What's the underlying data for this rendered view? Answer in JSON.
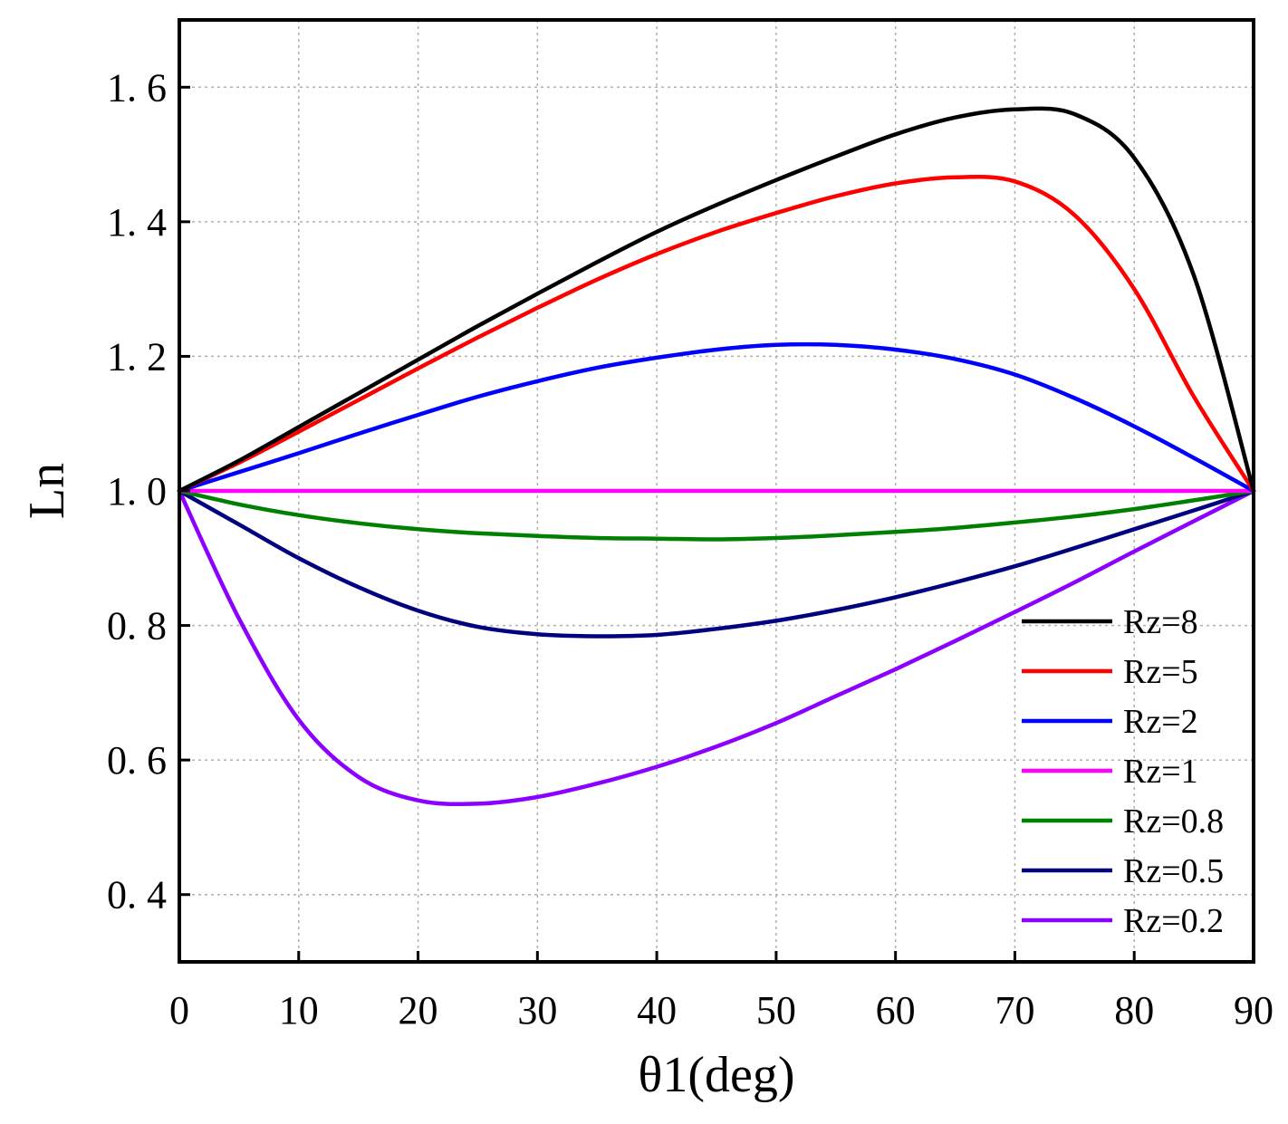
{
  "chart_data": {
    "type": "line",
    "title": "",
    "xlabel": "θ1(deg)",
    "ylabel": "Ln",
    "xlim": [
      0,
      90
    ],
    "ylim": [
      0.3,
      1.7
    ],
    "xticks": [
      0,
      10,
      20,
      30,
      40,
      50,
      60,
      70,
      80,
      90
    ],
    "yticks": [
      0.4,
      0.6,
      0.8,
      1.0,
      1.2,
      1.4,
      1.6
    ],
    "xtick_labels": [
      "0",
      "10",
      "20",
      "30",
      "40",
      "50",
      "60",
      "70",
      "80",
      "90"
    ],
    "ytick_labels": [
      "0. 4",
      "0. 6",
      "0. 8",
      "1. 0",
      "1. 2",
      "1. 4",
      "1. 6"
    ],
    "grid": true,
    "legend_position": "bottom-right",
    "x": [
      0,
      5,
      10,
      15,
      20,
      25,
      30,
      35,
      40,
      45,
      50,
      55,
      60,
      65,
      70,
      75,
      80,
      85,
      90
    ],
    "series": [
      {
        "name": "Rz=8",
        "color": "#000000",
        "values": [
          1.0,
          1.045,
          1.095,
          1.145,
          1.195,
          1.245,
          1.293,
          1.34,
          1.385,
          1.425,
          1.462,
          1.497,
          1.53,
          1.555,
          1.567,
          1.56,
          1.495,
          1.32,
          1.0
        ]
      },
      {
        "name": "Rz=5",
        "color": "#ff0000",
        "values": [
          1.0,
          1.042,
          1.088,
          1.135,
          1.182,
          1.228,
          1.272,
          1.314,
          1.352,
          1.385,
          1.413,
          1.438,
          1.457,
          1.466,
          1.46,
          1.41,
          1.3,
          1.14,
          1.0
        ]
      },
      {
        "name": "Rz=2",
        "color": "#0000ff",
        "values": [
          1.0,
          1.028,
          1.056,
          1.085,
          1.113,
          1.14,
          1.163,
          1.183,
          1.198,
          1.21,
          1.217,
          1.217,
          1.21,
          1.196,
          1.173,
          1.138,
          1.096,
          1.049,
          1.0
        ]
      },
      {
        "name": "Rz=1",
        "color": "#ff00ff",
        "values": [
          1.0,
          1.0,
          1.0,
          1.0,
          1.0,
          1.0,
          1.0,
          1.0,
          1.0,
          1.0,
          1.0,
          1.0,
          1.0,
          1.0,
          1.0,
          1.0,
          1.0,
          1.0,
          1.0
        ]
      },
      {
        "name": "Rz=0.8",
        "color": "#008000",
        "values": [
          1.0,
          0.98,
          0.964,
          0.952,
          0.943,
          0.937,
          0.933,
          0.93,
          0.929,
          0.928,
          0.93,
          0.934,
          0.939,
          0.945,
          0.953,
          0.962,
          0.973,
          0.986,
          1.0
        ]
      },
      {
        "name": "Rz=0.5",
        "color": "#000080",
        "values": [
          1.0,
          0.95,
          0.9,
          0.857,
          0.822,
          0.798,
          0.787,
          0.784,
          0.786,
          0.795,
          0.807,
          0.823,
          0.842,
          0.864,
          0.888,
          0.915,
          0.943,
          0.971,
          1.0
        ]
      },
      {
        "name": "Rz=0.2",
        "color": "#8b00ff",
        "values": [
          1.0,
          0.81,
          0.66,
          0.575,
          0.54,
          0.535,
          0.545,
          0.565,
          0.59,
          0.62,
          0.655,
          0.695,
          0.735,
          0.777,
          0.82,
          0.864,
          0.91,
          0.955,
          1.0
        ]
      }
    ]
  }
}
